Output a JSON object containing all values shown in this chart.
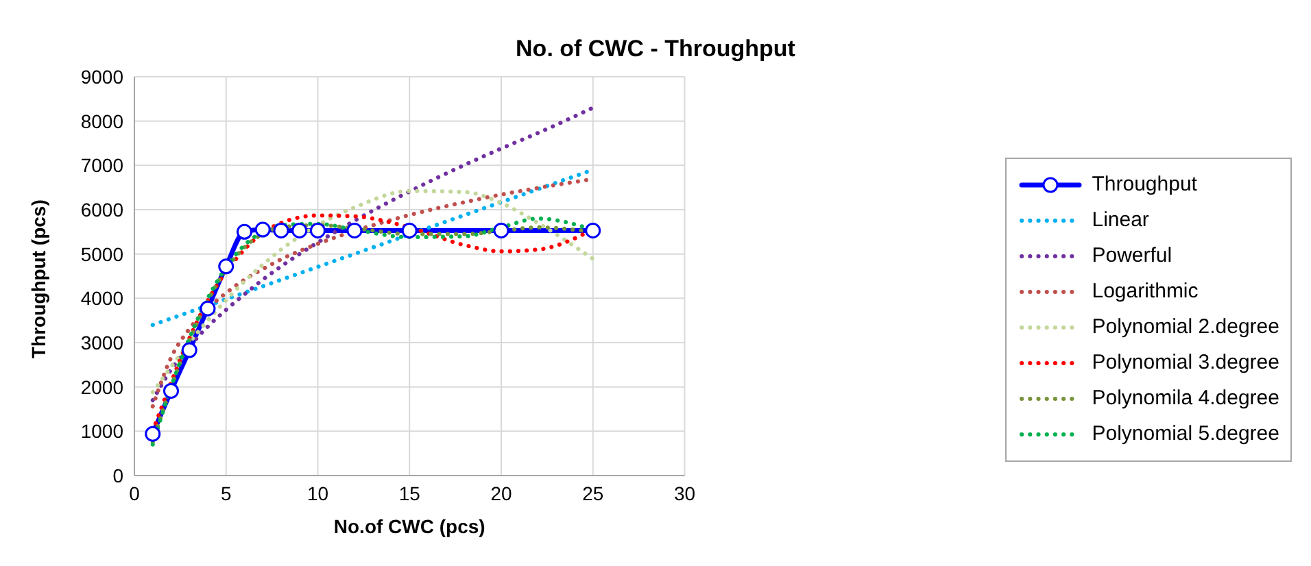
{
  "chart_data": {
    "type": "line",
    "title": "No. of CWC - Throughput",
    "xlabel": "No.of CWC (pcs)",
    "ylabel": "Throughput (pcs)",
    "xlim": [
      0,
      30
    ],
    "xticks": [
      0,
      5,
      10,
      15,
      20,
      25,
      30
    ],
    "ylim": [
      0,
      9000
    ],
    "yticks": [
      0,
      1000,
      2000,
      3000,
      4000,
      5000,
      6000,
      7000,
      8000,
      9000
    ],
    "grid": true,
    "legend": "right",
    "series": [
      {
        "name": "Throughput",
        "color": "#0000ff",
        "marker": "circle",
        "line_style": "solid",
        "x": [
          1,
          2,
          3,
          4,
          5,
          6,
          7,
          8,
          9,
          10,
          12,
          15,
          20,
          25
        ],
        "values": [
          940,
          1910,
          2830,
          3770,
          4720,
          5500,
          5550,
          5530,
          5530,
          5530,
          5530,
          5530,
          5530,
          5530
        ]
      },
      {
        "name": "Linear",
        "color": "#00b0f0",
        "marker": "none",
        "line_style": "dotted",
        "x": [
          1,
          5,
          10,
          15,
          20,
          25
        ],
        "values": [
          3400,
          3980,
          4710,
          5440,
          6170,
          6900
        ]
      },
      {
        "name": "Powerful",
        "color": "#7030a0",
        "marker": "none",
        "line_style": "dotted",
        "x": [
          1,
          2,
          3,
          4,
          5,
          6,
          7,
          8,
          10,
          12,
          15,
          18,
          20,
          22,
          25
        ],
        "values": [
          1700,
          2390,
          2910,
          3360,
          3740,
          4090,
          4420,
          4720,
          5260,
          5750,
          6410,
          7010,
          7380,
          7730,
          8300
        ]
      },
      {
        "name": "Logarithmic",
        "color": "#c0504d",
        "marker": "none",
        "line_style": "dotted",
        "x": [
          1,
          2,
          3,
          4,
          5,
          6,
          7,
          8,
          10,
          12,
          15,
          18,
          20,
          22,
          25
        ],
        "values": [
          1560,
          2660,
          3310,
          3770,
          4120,
          4420,
          4660,
          4880,
          5230,
          5520,
          5880,
          6170,
          6340,
          6490,
          6690
        ]
      },
      {
        "name": "Polynomial 2.degree",
        "color": "#c4d79b",
        "marker": "none",
        "line_style": "dotted",
        "x": [
          1,
          2,
          3,
          4,
          5,
          6,
          7,
          8,
          10,
          12,
          15,
          18,
          20,
          22,
          25
        ],
        "values": [
          1880,
          2450,
          3000,
          3500,
          3960,
          4380,
          4760,
          5100,
          5650,
          6050,
          6420,
          6400,
          6150,
          5700,
          4890
        ]
      },
      {
        "name": "Polynomial 3.degree",
        "color": "#ff0000",
        "marker": "none",
        "line_style": "dotted",
        "x": [
          1,
          2,
          3,
          4,
          5,
          6,
          7,
          8,
          10,
          12,
          15,
          18,
          20,
          22,
          25
        ],
        "values": [
          1000,
          2100,
          3100,
          3950,
          4600,
          5100,
          5480,
          5700,
          5870,
          5850,
          5600,
          5200,
          5060,
          5100,
          5550
        ]
      },
      {
        "name": "Polynomila 4.degree",
        "color": "#77933c",
        "marker": "none",
        "line_style": "dotted",
        "x": [
          1,
          2,
          3,
          4,
          5,
          6,
          7,
          8,
          10,
          12,
          15,
          18,
          20,
          22,
          25
        ],
        "values": [
          750,
          2000,
          3050,
          3950,
          4650,
          5150,
          5450,
          5600,
          5650,
          5580,
          5450,
          5450,
          5520,
          5600,
          5500
        ]
      },
      {
        "name": "Polynomial 5.degree",
        "color": "#00b050",
        "marker": "none",
        "line_style": "dotted",
        "x": [
          1,
          2,
          3,
          4,
          5,
          6,
          7,
          8,
          10,
          12,
          15,
          18,
          20,
          22,
          25
        ],
        "values": [
          700,
          2000,
          3100,
          4000,
          4700,
          5200,
          5500,
          5650,
          5680,
          5550,
          5380,
          5400,
          5600,
          5800,
          5550
        ]
      }
    ]
  }
}
